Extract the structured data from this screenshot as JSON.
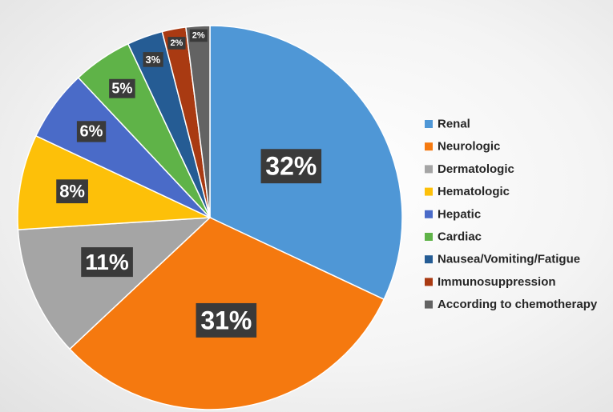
{
  "chart_data": {
    "type": "pie",
    "title": "",
    "legend_position": "right",
    "slices": [
      {
        "label": "Renal",
        "value": 32,
        "display": "32%",
        "color": "#4f97d6"
      },
      {
        "label": "Neurologic",
        "value": 31,
        "display": "31%",
        "color": "#f5790f"
      },
      {
        "label": "Dermatologic",
        "value": 11,
        "display": "11%",
        "color": "#a5a5a5"
      },
      {
        "label": "Hematologic",
        "value": 8,
        "display": "8%",
        "color": "#fdc009"
      },
      {
        "label": "Hepatic",
        "value": 6,
        "display": "6%",
        "color": "#4a6bc8"
      },
      {
        "label": "Cardiac",
        "value": 5,
        "display": "5%",
        "color": "#5fb348"
      },
      {
        "label": "Nausea/Vomiting/Fatigue",
        "value": 3,
        "display": "3%",
        "color": "#255c94"
      },
      {
        "label": "Immunosuppression",
        "value": 2,
        "display": "2%",
        "color": "#a93a12"
      },
      {
        "label": "According to chemotherapy",
        "value": 2,
        "display": "2%",
        "color": "#636363"
      }
    ]
  }
}
